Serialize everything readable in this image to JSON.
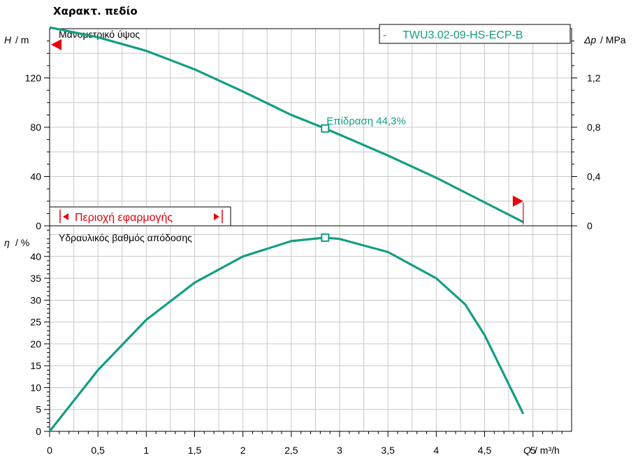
{
  "page_title": "Χαρακτ. πεδίο",
  "colors": {
    "curve": "#139e82",
    "marker": "#e8000b",
    "axis": "#000000",
    "grid": "#c8c8c8"
  },
  "chart_data": [
    {
      "type": "line",
      "panel": "head",
      "title": "Μανομετρικό ύψος",
      "ylabel_symbol": "H",
      "ylabel_unit": "/ m",
      "y2label_symbol": "Δp",
      "y2label_unit": "/ MPa",
      "legend": "TWU3.02-09-HS-ECP-B",
      "legend_dash": "-",
      "ylim": [
        0,
        160
      ],
      "yticks": [
        0,
        40,
        80,
        120
      ],
      "y2ticks": [
        "0",
        "0,4",
        "0,8",
        "1,2"
      ],
      "grid": true,
      "series": [
        {
          "x": [
            0,
            0.5,
            1,
            1.5,
            2,
            2.5,
            2.85,
            3,
            3.5,
            4,
            4.5,
            4.9
          ],
          "values": [
            161,
            153,
            142,
            127,
            109,
            90,
            79,
            74,
            57,
            39,
            19,
            3
          ]
        }
      ],
      "duty_point": {
        "x": 2.85,
        "y": 79,
        "label": "Επίδραση  44,3%"
      },
      "application_range": {
        "label": "Περιοχή εφαρμογής",
        "xmin": 0,
        "xmax": 4.9
      }
    },
    {
      "type": "line",
      "panel": "efficiency",
      "title": "Υδραυλικός βαθμός απόδοσης",
      "ylabel_symbol": "η",
      "ylabel_unit": "/ %",
      "xlabel_symbol": "Q",
      "xlabel_unit": "/ m³/h",
      "ylim": [
        0,
        47
      ],
      "yticks": [
        0,
        5,
        10,
        15,
        20,
        25,
        30,
        35,
        40
      ],
      "xlim": [
        0,
        5.4
      ],
      "xticks": [
        "0",
        "0,5",
        "1",
        "1,5",
        "2",
        "2,5",
        "3",
        "3,5",
        "4",
        "4,5",
        "5"
      ],
      "grid": true,
      "series": [
        {
          "x": [
            0,
            0.5,
            1,
            1.5,
            2,
            2.5,
            2.85,
            3,
            3.5,
            4,
            4.3,
            4.5,
            4.7,
            4.9
          ],
          "values": [
            0,
            14,
            25.5,
            34,
            40,
            43.5,
            44.3,
            44,
            41,
            35,
            29,
            22,
            13,
            4
          ]
        }
      ],
      "duty_point": {
        "x": 2.85,
        "y": 44.3
      }
    }
  ]
}
